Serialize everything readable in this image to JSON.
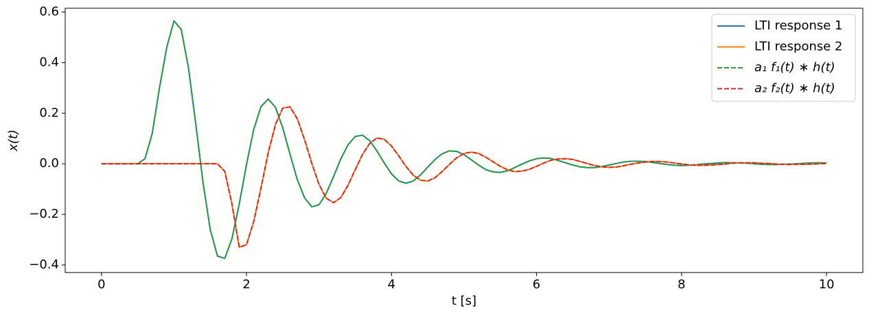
{
  "chart_data": {
    "type": "line",
    "x": [
      0,
      0.1,
      0.2,
      0.3,
      0.4,
      0.5,
      0.6,
      0.7,
      0.8,
      0.9,
      1,
      1.1,
      1.2,
      1.3,
      1.4,
      1.5,
      1.6,
      1.7,
      1.8,
      1.9,
      2,
      2.1,
      2.2,
      2.3,
      2.4,
      2.5,
      2.6,
      2.7,
      2.8,
      2.9,
      3,
      3.1,
      3.2,
      3.3,
      3.4,
      3.5,
      3.6,
      3.7,
      3.8,
      3.9,
      4,
      4.1,
      4.2,
      4.3,
      4.4,
      4.5,
      4.6,
      4.7,
      4.8,
      4.9,
      5,
      5.1,
      5.2,
      5.3,
      5.4,
      5.5,
      5.6,
      5.7,
      5.8,
      5.9,
      6,
      6.1,
      6.2,
      6.3,
      6.4,
      6.5,
      6.6,
      6.7,
      6.8,
      6.9,
      7,
      7.1,
      7.2,
      7.3,
      7.4,
      7.5,
      7.6,
      7.7,
      7.8,
      7.9,
      8,
      8.1,
      8.2,
      8.3,
      8.4,
      8.5,
      8.6,
      8.7,
      8.8,
      8.9,
      9,
      9.1,
      9.2,
      9.3,
      9.4,
      9.5,
      9.6,
      9.7,
      9.8,
      9.9,
      10
    ],
    "series": [
      {
        "name": "LTI response 1",
        "color": "#1f77b4",
        "linestyle": "solid",
        "values": [
          0,
          0,
          0,
          0,
          0,
          0,
          0.02,
          0.12,
          0.3,
          0.46,
          0.565,
          0.531,
          0.379,
          0.158,
          -0.073,
          -0.26,
          -0.365,
          -0.374,
          -0.296,
          -0.159,
          -0.003,
          0.136,
          0.226,
          0.256,
          0.223,
          0.142,
          0.038,
          -0.062,
          -0.134,
          -0.17,
          -0.162,
          -0.117,
          -0.051,
          0.019,
          0.075,
          0.108,
          0.113,
          0.091,
          0.05,
          0.003,
          -0.04,
          -0.068,
          -0.077,
          -0.068,
          -0.044,
          -0.013,
          0.017,
          0.04,
          0.051,
          0.049,
          0.036,
          0.016,
          -0.005,
          -0.023,
          -0.032,
          -0.034,
          -0.028,
          -0.015,
          -0.001,
          0.011,
          0.02,
          0.023,
          0.021,
          0.013,
          0.004,
          -0.005,
          -0.012,
          -0.015,
          -0.015,
          -0.011,
          -0.005,
          0.001,
          0.007,
          0.01,
          0.01,
          0.009,
          0.005,
          0.001,
          -0.003,
          -0.006,
          -0.007,
          -0.006,
          -0.004,
          -0.001,
          0.001,
          0.003,
          0.005,
          0.004,
          0.003,
          0.002,
          0,
          -0.002,
          -0.003,
          -0.003,
          -0.002,
          -0.001,
          0,
          0.002,
          0.003,
          0.004,
          0.003
        ]
      },
      {
        "name": "LTI response 2",
        "color": "#ff7f0e",
        "linestyle": "solid",
        "values": [
          0,
          0,
          0,
          0,
          0,
          0,
          0,
          0,
          0,
          0,
          0,
          0,
          0,
          0,
          0,
          0,
          0,
          -0.03,
          -0.16,
          -0.33,
          -0.32,
          -0.228,
          -0.095,
          0.044,
          0.156,
          0.22,
          0.225,
          0.178,
          0.096,
          0.002,
          -0.082,
          -0.136,
          -0.154,
          -0.134,
          -0.085,
          -0.023,
          0.037,
          0.081,
          0.102,
          0.097,
          0.07,
          0.031,
          -0.011,
          -0.045,
          -0.065,
          -0.068,
          -0.055,
          -0.03,
          -0.002,
          0.024,
          0.041,
          0.046,
          0.041,
          0.026,
          0.008,
          -0.01,
          -0.024,
          -0.031,
          -0.029,
          -0.022,
          -0.01,
          0.003,
          0.014,
          0.019,
          0.02,
          0.017,
          0.009,
          0.001,
          -0.007,
          -0.012,
          -0.014,
          -0.013,
          -0.008,
          -0.002,
          0.003,
          0.007,
          0.009,
          0.009,
          0.007,
          0.003,
          -0.001,
          -0.004,
          -0.006,
          -0.006,
          -0.005,
          -0.003,
          -0.001,
          0.002,
          0.004,
          0.004,
          0.004,
          0.002,
          0.001,
          -0.001,
          -0.002,
          -0.003,
          -0.002,
          -0.002,
          -0.001,
          0,
          0.001
        ]
      },
      {
        "name": "a₁ f₁(t) ∗ h(t)",
        "color": "#2ca02c",
        "linestyle": "dashed",
        "values": [
          0,
          0,
          0,
          0,
          0,
          0,
          0.02,
          0.12,
          0.3,
          0.46,
          0.565,
          0.531,
          0.379,
          0.158,
          -0.073,
          -0.26,
          -0.365,
          -0.374,
          -0.296,
          -0.159,
          -0.003,
          0.136,
          0.226,
          0.256,
          0.223,
          0.142,
          0.038,
          -0.062,
          -0.134,
          -0.17,
          -0.162,
          -0.117,
          -0.051,
          0.019,
          0.075,
          0.108,
          0.113,
          0.091,
          0.05,
          0.003,
          -0.04,
          -0.068,
          -0.077,
          -0.068,
          -0.044,
          -0.013,
          0.017,
          0.04,
          0.051,
          0.049,
          0.036,
          0.016,
          -0.005,
          -0.023,
          -0.032,
          -0.034,
          -0.028,
          -0.015,
          -0.001,
          0.011,
          0.02,
          0.023,
          0.021,
          0.013,
          0.004,
          -0.005,
          -0.012,
          -0.015,
          -0.015,
          -0.011,
          -0.005,
          0.001,
          0.007,
          0.01,
          0.01,
          0.009,
          0.005,
          0.001,
          -0.003,
          -0.006,
          -0.007,
          -0.006,
          -0.004,
          -0.001,
          0.001,
          0.003,
          0.005,
          0.004,
          0.003,
          0.002,
          0,
          -0.002,
          -0.003,
          -0.003,
          -0.002,
          -0.001,
          0,
          0.002,
          0.003,
          0.004,
          0.003
        ]
      },
      {
        "name": "a₂ f₂(t) ∗ h(t)",
        "color": "#d62728",
        "linestyle": "dashed",
        "values": [
          0,
          0,
          0,
          0,
          0,
          0,
          0,
          0,
          0,
          0,
          0,
          0,
          0,
          0,
          0,
          0,
          0,
          -0.03,
          -0.16,
          -0.33,
          -0.32,
          -0.228,
          -0.095,
          0.044,
          0.156,
          0.22,
          0.225,
          0.178,
          0.096,
          0.002,
          -0.082,
          -0.136,
          -0.154,
          -0.134,
          -0.085,
          -0.023,
          0.037,
          0.081,
          0.102,
          0.097,
          0.07,
          0.031,
          -0.011,
          -0.045,
          -0.065,
          -0.068,
          -0.055,
          -0.03,
          -0.002,
          0.024,
          0.041,
          0.046,
          0.041,
          0.026,
          0.008,
          -0.01,
          -0.024,
          -0.031,
          -0.029,
          -0.022,
          -0.01,
          0.003,
          0.014,
          0.019,
          0.02,
          0.017,
          0.009,
          0.001,
          -0.007,
          -0.012,
          -0.014,
          -0.013,
          -0.008,
          -0.002,
          0.003,
          0.007,
          0.009,
          0.009,
          0.007,
          0.003,
          -0.001,
          -0.004,
          -0.006,
          -0.006,
          -0.005,
          -0.003,
          -0.001,
          0.002,
          0.004,
          0.004,
          0.004,
          0.002,
          0.001,
          -0.001,
          -0.002,
          -0.003,
          -0.002,
          -0.002,
          -0.001,
          0,
          0.001
        ]
      }
    ],
    "x_label": "t [s]",
    "y_label": "x(t)",
    "xlim": [
      -0.5,
      10.5
    ],
    "xticks": [
      0,
      2,
      4,
      6,
      8,
      10
    ],
    "ylim": [
      -0.43,
      0.615
    ],
    "yticks": [
      {
        "value": -0.4,
        "label": "−0.4"
      },
      {
        "value": -0.2,
        "label": "−0.2"
      },
      {
        "value": 0,
        "label": "0.0"
      },
      0.2,
      0.4,
      0.6
    ],
    "legend": "upper right"
  }
}
